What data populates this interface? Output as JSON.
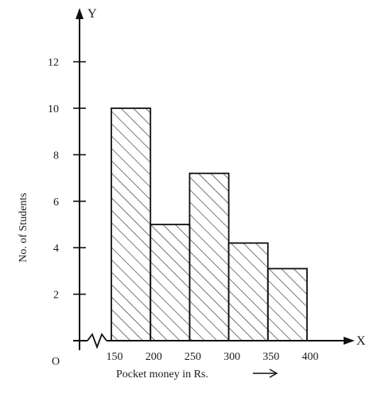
{
  "chart_data": {
    "type": "bar",
    "title": "",
    "xlabel": "Pocket money in Rs.",
    "ylabel": "No. of Students",
    "x_axis_letter": "X",
    "y_axis_letter": "Y",
    "origin_label": "O",
    "bins": [
      {
        "from": 150,
        "to": 200,
        "value": 10
      },
      {
        "from": 200,
        "to": 250,
        "value": 5
      },
      {
        "from": 250,
        "to": 300,
        "value": 7.2
      },
      {
        "from": 300,
        "to": 350,
        "value": 4.2
      },
      {
        "from": 350,
        "to": 400,
        "value": 3.1
      }
    ],
    "x_ticks": [
      "150",
      "200",
      "250",
      "300",
      "350",
      "400"
    ],
    "x_tick_values": [
      150,
      200,
      250,
      300,
      350,
      400
    ],
    "y_ticks": [
      "2",
      "4",
      "6",
      "8",
      "10",
      "12"
    ],
    "y_tick_values": [
      2,
      4,
      6,
      8,
      10,
      12
    ],
    "xlim": [
      150,
      400
    ],
    "ylim": [
      0,
      12
    ],
    "axis_break": true,
    "fill_pattern": "diagonal-hatch",
    "grid": false
  }
}
